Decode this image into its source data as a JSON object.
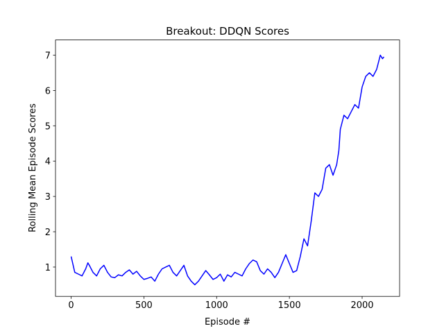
{
  "chart_data": {
    "type": "line",
    "title": "Breakout: DDQN Scores",
    "x_label": "Episode #",
    "y_label": "Rolling Mean Episode Scores",
    "x": [
      0,
      25,
      50,
      75,
      100,
      115,
      125,
      150,
      175,
      200,
      225,
      250,
      275,
      300,
      325,
      350,
      375,
      400,
      425,
      450,
      475,
      500,
      525,
      550,
      575,
      600,
      625,
      650,
      675,
      700,
      725,
      750,
      775,
      800,
      825,
      850,
      875,
      900,
      925,
      950,
      975,
      1000,
      1025,
      1050,
      1075,
      1100,
      1125,
      1150,
      1175,
      1200,
      1225,
      1250,
      1275,
      1300,
      1325,
      1350,
      1375,
      1400,
      1425,
      1450,
      1475,
      1500,
      1525,
      1550,
      1575,
      1600,
      1625,
      1650,
      1675,
      1700,
      1725,
      1750,
      1775,
      1800,
      1825,
      1840,
      1850,
      1875,
      1900,
      1925,
      1950,
      1975,
      2000,
      2025,
      2050,
      2075,
      2100,
      2125,
      2140,
      2150
    ],
    "series": [
      {
        "name": "DDQN",
        "color": "#0000ff",
        "values": [
          1.3,
          0.85,
          0.8,
          0.75,
          0.95,
          1.12,
          1.05,
          0.85,
          0.75,
          0.95,
          1.05,
          0.85,
          0.72,
          0.7,
          0.78,
          0.75,
          0.85,
          0.92,
          0.8,
          0.88,
          0.75,
          0.65,
          0.68,
          0.72,
          0.6,
          0.8,
          0.95,
          1.0,
          1.05,
          0.85,
          0.75,
          0.9,
          1.05,
          0.75,
          0.6,
          0.5,
          0.6,
          0.75,
          0.9,
          0.78,
          0.65,
          0.7,
          0.8,
          0.6,
          0.78,
          0.72,
          0.85,
          0.8,
          0.75,
          0.95,
          1.1,
          1.2,
          1.15,
          0.9,
          0.8,
          0.95,
          0.85,
          0.7,
          0.85,
          1.1,
          1.35,
          1.1,
          0.85,
          0.9,
          1.3,
          1.8,
          1.6,
          2.3,
          3.1,
          3.0,
          3.2,
          3.8,
          3.9,
          3.6,
          3.9,
          4.3,
          4.9,
          5.3,
          5.2,
          5.4,
          5.6,
          5.5,
          6.1,
          6.4,
          6.5,
          6.4,
          6.6,
          7.0,
          6.9,
          6.95
        ]
      }
    ],
    "xlim": [
      -107.5,
      2257.5
    ],
    "ylim": [
      0.17,
      7.43
    ],
    "xticks": [
      0,
      500,
      1000,
      1500,
      2000
    ],
    "yticks": [
      1,
      2,
      3,
      4,
      5,
      6,
      7
    ],
    "grid": false
  }
}
